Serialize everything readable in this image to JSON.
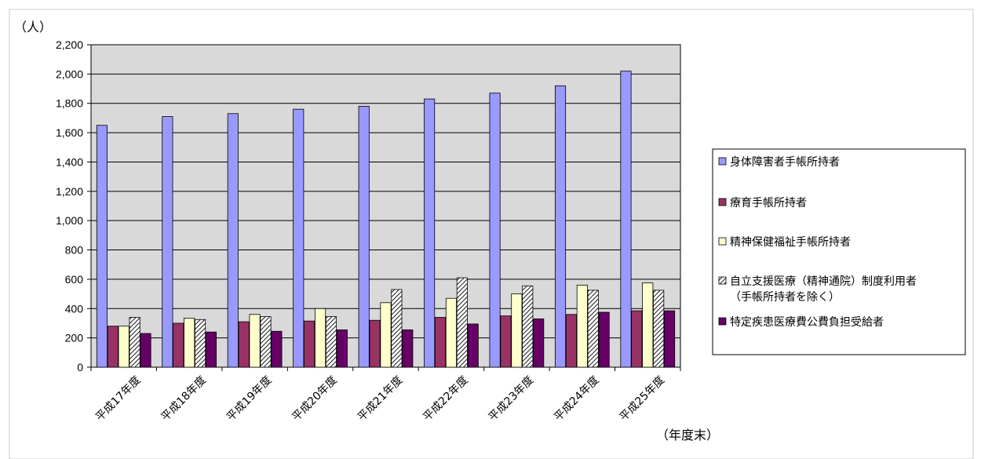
{
  "chart_data": {
    "type": "bar",
    "y_unit": "（人）",
    "x_unit": "（年度末）",
    "categories": [
      "平成17年度",
      "平成18年度",
      "平成19年度",
      "平成20年度",
      "平成21年度",
      "平成22年度",
      "平成23年度",
      "平成24年度",
      "平成25年度"
    ],
    "ylim": [
      0,
      2200
    ],
    "yticks": [
      0,
      200,
      400,
      600,
      800,
      1000,
      1200,
      1400,
      1600,
      1800,
      2000,
      2200
    ],
    "ytick_labels": [
      "0",
      "200",
      "400",
      "600",
      "800",
      "1,000",
      "1,200",
      "1,400",
      "1,600",
      "1,800",
      "2,000",
      "2,200"
    ],
    "grid": true,
    "legend_position": "right",
    "series": [
      {
        "name": "身体障害者手帳所持者",
        "color": "#9999ff",
        "pattern": "solid",
        "values": [
          1650,
          1710,
          1730,
          1760,
          1780,
          1830,
          1870,
          1920,
          2020
        ]
      },
      {
        "name": "療育手帳所持者",
        "color": "#993366",
        "pattern": "solid",
        "values": [
          280,
          300,
          310,
          315,
          320,
          340,
          350,
          360,
          385
        ]
      },
      {
        "name": "精神保健福祉手帳所持者",
        "color": "#ffffcc",
        "pattern": "solid",
        "values": [
          280,
          335,
          360,
          400,
          440,
          470,
          500,
          560,
          575
        ]
      },
      {
        "name": "自立支援医療（精神通院）制度利用者（手帳所持者を除く）",
        "legend_lines": [
          "自立支援医療（精神通院）制度利用者",
          "（手帳所持者を除く）"
        ],
        "color": "#ffffff",
        "pattern": "hatch",
        "values": [
          340,
          325,
          345,
          345,
          530,
          610,
          555,
          525,
          525
        ]
      },
      {
        "name": "特定疾患医療費公費負担受給者",
        "color": "#660066",
        "pattern": "solid",
        "values": [
          230,
          240,
          245,
          255,
          255,
          295,
          330,
          375,
          385
        ]
      }
    ]
  }
}
